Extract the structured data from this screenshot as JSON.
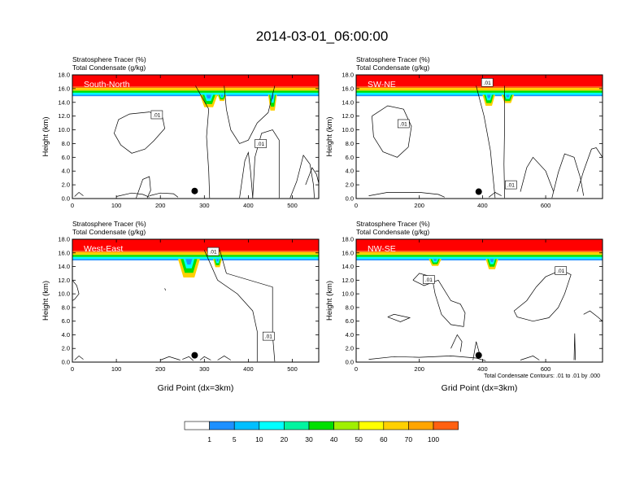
{
  "figure": {
    "title": "2014-03-01_06:00:00",
    "footnote": "Total Condensate Contours: .01 to .01 by .000"
  },
  "colors": {
    "levels": [
      "#ffffff",
      "#1e90ff",
      "#00bfff",
      "#00ffff",
      "#00f5a0",
      "#00e000",
      "#a0f000",
      "#ffff00",
      "#ffd000",
      "#ffa500",
      "#ff6010",
      "#ff0000"
    ],
    "contour": "#000000",
    "marker": "#000000"
  },
  "colorbar": {
    "labels": [
      "1",
      "5",
      "10",
      "20",
      "30",
      "40",
      "50",
      "60",
      "70",
      "100"
    ]
  },
  "chart_data": [
    {
      "type": "heatmap",
      "panel_label": "South-North",
      "title_lines": [
        "Stratosphere Tracer   (%)",
        "Total Condensate   (g/kg)"
      ],
      "xlabel": "",
      "ylabel": "Height (km)",
      "xlim": [
        0,
        560
      ],
      "ylim": [
        0,
        18
      ],
      "xticks": [
        0,
        100,
        200,
        300,
        400,
        500
      ],
      "yticks": [
        "0.0",
        "2.0",
        "4.0",
        "6.0",
        "8.0",
        "10.0",
        "12.0",
        "14.0",
        "16.0",
        "18.0"
      ],
      "layers": [
        {
          "class": 11,
          "x": 0,
          "x2": 560,
          "y0": 16.3,
          "y1": 18
        },
        {
          "class": 10,
          "x": 0,
          "x2": 560,
          "y0": 16.1,
          "y1": 16.3
        },
        {
          "class": 8,
          "x": 0,
          "x2": 560,
          "y0": 15.7,
          "y1": 16.1
        },
        {
          "class": 5,
          "x": 0,
          "x2": 560,
          "y0": 15.4,
          "y1": 15.7
        },
        {
          "class": 3,
          "x": 0,
          "x2": 560,
          "y0": 15.1,
          "y1": 15.4
        },
        {
          "class": 1,
          "x": 0,
          "x2": 560,
          "y0": 14.9,
          "y1": 15.1
        }
      ],
      "intrusions": [
        {
          "x": 290,
          "x2": 330,
          "depth": 1.8
        },
        {
          "x": 330,
          "x2": 350,
          "depth": 0.9
        },
        {
          "x": 445,
          "x2": 465,
          "depth": 2.3
        }
      ],
      "contours": [
        [
          [
            105,
            11.5
          ],
          [
            130,
            12.3
          ],
          [
            175,
            12.6
          ],
          [
            205,
            11.8
          ],
          [
            210,
            10.2
          ],
          [
            185,
            8.4
          ],
          [
            165,
            7.2
          ],
          [
            135,
            6.6
          ],
          [
            110,
            7.8
          ],
          [
            95,
            9.5
          ],
          [
            105,
            11.5
          ]
        ],
        [
          [
            280,
            16.4
          ],
          [
            310,
            13.0
          ],
          [
            305,
            9.0
          ],
          [
            310,
            4.0
          ],
          [
            312,
            0.1
          ]
        ],
        [
          [
            345,
            16.4
          ],
          [
            350,
            13.0
          ],
          [
            360,
            10.0
          ],
          [
            380,
            8.0
          ],
          [
            400,
            8.5
          ],
          [
            420,
            11.0
          ],
          [
            445,
            12.5
          ],
          [
            460,
            16.4
          ]
        ],
        [
          [
            380,
            0.1
          ],
          [
            392,
            5.5
          ],
          [
            400,
            6.7
          ],
          [
            405,
            4.0
          ],
          [
            410,
            0.1
          ]
        ],
        [
          [
            410,
            0.1
          ],
          [
            415,
            6.0
          ],
          [
            430,
            9.5
          ],
          [
            455,
            10.0
          ],
          [
            470,
            8.5
          ],
          [
            470,
            0.1
          ]
        ],
        [
          [
            495,
            0.1
          ],
          [
            510,
            2.5
          ],
          [
            525,
            6.3
          ],
          [
            540,
            5.0
          ],
          [
            548,
            2.0
          ],
          [
            550,
            0.1
          ]
        ],
        [
          [
            530,
            2.0
          ],
          [
            545,
            4.5
          ],
          [
            555,
            3.5
          ],
          [
            560,
            2.2
          ]
        ],
        [
          [
            145,
            0.1
          ],
          [
            160,
            2.8
          ],
          [
            175,
            3.2
          ],
          [
            178,
            1.2
          ],
          [
            170,
            0.1
          ]
        ],
        [
          [
            175,
            0.4
          ],
          [
            200,
            0.8
          ],
          [
            230,
            0.7
          ],
          [
            240,
            0.2
          ]
        ],
        [
          [
            5,
            0.3
          ],
          [
            15,
            0.9
          ],
          [
            25,
            0.4
          ]
        ],
        [
          [
            100,
            0.3
          ],
          [
            135,
            0.8
          ],
          [
            160,
            0.6
          ],
          [
            175,
            0.2
          ]
        ]
      ],
      "labels": [
        {
          "x": 192,
          "y": 12.2,
          "text": ".01"
        },
        {
          "x": 428,
          "y": 8.0,
          "text": ".01"
        }
      ],
      "marker": {
        "x": 278,
        "y": 1.1
      }
    },
    {
      "type": "heatmap",
      "panel_label": "SW-NE",
      "title_lines": [
        "Stratosphere Tracer   (%)",
        "Total Condensate   (g/kg)"
      ],
      "xlabel": "",
      "ylabel": "Height (km)",
      "xlim": [
        0,
        780
      ],
      "ylim": [
        0,
        18
      ],
      "xticks": [
        0,
        200,
        400,
        600
      ],
      "yticks": [
        "0.0",
        "2.0",
        "4.0",
        "6.0",
        "8.0",
        "10.0",
        "12.0",
        "14.0",
        "16.0",
        "18.0"
      ],
      "layers": [
        {
          "class": 11,
          "x": 0,
          "x2": 780,
          "y0": 16.3,
          "y1": 18
        },
        {
          "class": 10,
          "x": 0,
          "x2": 780,
          "y0": 16.1,
          "y1": 16.3
        },
        {
          "class": 8,
          "x": 0,
          "x2": 780,
          "y0": 15.7,
          "y1": 16.1
        },
        {
          "class": 5,
          "x": 0,
          "x2": 780,
          "y0": 15.4,
          "y1": 15.7
        },
        {
          "class": 3,
          "x": 0,
          "x2": 780,
          "y0": 15.1,
          "y1": 15.4
        },
        {
          "class": 1,
          "x": 0,
          "x2": 780,
          "y0": 14.9,
          "y1": 15.1
        }
      ],
      "intrusions": [
        {
          "x": 400,
          "x2": 440,
          "depth": 1.6
        },
        {
          "x": 460,
          "x2": 500,
          "depth": 1.2
        }
      ],
      "contours": [
        [
          [
            50,
            12.0
          ],
          [
            100,
            13.5
          ],
          [
            150,
            13.0
          ],
          [
            175,
            10.5
          ],
          [
            165,
            7.5
          ],
          [
            130,
            6.0
          ],
          [
            85,
            6.8
          ],
          [
            55,
            9.0
          ],
          [
            50,
            12.0
          ]
        ],
        [
          [
            380,
            16.4
          ],
          [
            405,
            12.0
          ],
          [
            425,
            7.0
          ],
          [
            440,
            0.1
          ]
        ],
        [
          [
            470,
            16.4
          ],
          [
            470,
            11.0
          ],
          [
            468,
            5.0
          ],
          [
            470,
            0.1
          ]
        ],
        [
          [
            520,
            1.0
          ],
          [
            540,
            4.5
          ],
          [
            560,
            6.0
          ],
          [
            600,
            4.0
          ],
          [
            625,
            1.0
          ]
        ],
        [
          [
            620,
            0.1
          ],
          [
            640,
            3.8
          ],
          [
            660,
            6.5
          ],
          [
            690,
            6.0
          ],
          [
            710,
            3.0
          ],
          [
            720,
            0.4
          ]
        ],
        [
          [
            700,
            1.0
          ],
          [
            720,
            4.0
          ],
          [
            745,
            7.2
          ],
          [
            760,
            7.4
          ],
          [
            780,
            6.0
          ]
        ],
        [
          [
            40,
            0.4
          ],
          [
            100,
            0.9
          ],
          [
            200,
            0.9
          ],
          [
            260,
            0.6
          ],
          [
            280,
            0.2
          ]
        ],
        [
          [
            420,
            0.2
          ],
          [
            440,
            0.9
          ],
          [
            460,
            0.4
          ]
        ]
      ],
      "labels": [
        {
          "x": 415,
          "y": 16.9,
          "text": ".01"
        },
        {
          "x": 150,
          "y": 10.9,
          "text": ".01"
        },
        {
          "x": 490,
          "y": 2.0,
          "text": ".01"
        }
      ],
      "marker": {
        "x": 388,
        "y": 1.0
      }
    },
    {
      "type": "heatmap",
      "panel_label": "West-East",
      "title_lines": [
        "Stratosphere Tracer   (%)",
        "Total Condensate   (g/kg)"
      ],
      "xlabel": "Grid Point (dx=3km)",
      "ylabel": "Height (km)",
      "xlim": [
        0,
        560
      ],
      "ylim": [
        0,
        18
      ],
      "xticks": [
        0,
        100,
        200,
        300,
        400,
        500
      ],
      "yticks": [
        "0.0",
        "2.0",
        "4.0",
        "6.0",
        "8.0",
        "10.0",
        "12.0",
        "14.0",
        "16.0",
        "18.0"
      ],
      "layers": [
        {
          "class": 11,
          "x": 0,
          "x2": 560,
          "y0": 16.3,
          "y1": 18
        },
        {
          "class": 10,
          "x": 0,
          "x2": 560,
          "y0": 16.1,
          "y1": 16.3
        },
        {
          "class": 8,
          "x": 0,
          "x2": 560,
          "y0": 15.7,
          "y1": 16.1
        },
        {
          "class": 5,
          "x": 0,
          "x2": 560,
          "y0": 15.4,
          "y1": 15.7
        },
        {
          "class": 3,
          "x": 0,
          "x2": 560,
          "y0": 15.1,
          "y1": 15.4
        },
        {
          "class": 1,
          "x": 0,
          "x2": 560,
          "y0": 14.9,
          "y1": 15.1
        }
      ],
      "intrusions": [
        {
          "x": 240,
          "x2": 290,
          "depth": 2.7
        },
        {
          "x": 320,
          "x2": 340,
          "depth": 1.2
        }
      ],
      "contours": [
        [
          [
            0,
            12.0
          ],
          [
            10,
            11.2
          ],
          [
            15,
            10.0
          ],
          [
            5,
            9.2
          ],
          [
            0,
            9.0
          ]
        ],
        [
          [
            300,
            16.4
          ],
          [
            330,
            12.0
          ],
          [
            375,
            10.0
          ],
          [
            410,
            7.5
          ],
          [
            420,
            4.5
          ],
          [
            420,
            0.1
          ]
        ],
        [
          [
            335,
            16.4
          ],
          [
            350,
            13.0
          ],
          [
            455,
            11.0
          ],
          [
            455,
            4.0
          ],
          [
            460,
            0.1
          ]
        ],
        [
          [
            210,
            10.8
          ],
          [
            212,
            10.5
          ]
        ],
        [
          [
            5,
            0.3
          ],
          [
            15,
            0.9
          ],
          [
            25,
            0.4
          ]
        ],
        [
          [
            200,
            0.3
          ],
          [
            220,
            0.8
          ],
          [
            245,
            0.3
          ]
        ],
        [
          [
            250,
            0.4
          ],
          [
            265,
            0.8
          ],
          [
            275,
            0.2
          ]
        ],
        [
          [
            290,
            0.3
          ],
          [
            300,
            0.8
          ],
          [
            315,
            0.3
          ]
        ],
        [
          [
            330,
            0.3
          ],
          [
            345,
            0.9
          ],
          [
            360,
            0.3
          ]
        ]
      ],
      "labels": [
        {
          "x": 320,
          "y": 16.2,
          "text": ".01"
        },
        {
          "x": 446,
          "y": 3.8,
          "text": ".01"
        }
      ],
      "marker": {
        "x": 278,
        "y": 1.0
      }
    },
    {
      "type": "heatmap",
      "panel_label": "NW-SE",
      "title_lines": [
        "Stratosphere Tracer   (%)",
        "Total Condensate   (g/kg)"
      ],
      "xlabel": "Grid Point (dx=3km)",
      "ylabel": "Height (km)",
      "xlim": [
        0,
        780
      ],
      "ylim": [
        0,
        18
      ],
      "xticks": [
        0,
        200,
        400,
        600
      ],
      "yticks": [
        "0.0",
        "2.0",
        "4.0",
        "6.0",
        "8.0",
        "10.0",
        "12.0",
        "14.0",
        "16.0",
        "18.0"
      ],
      "layers": [
        {
          "class": 11,
          "x": 0,
          "x2": 780,
          "y0": 16.3,
          "y1": 18
        },
        {
          "class": 10,
          "x": 0,
          "x2": 780,
          "y0": 16.1,
          "y1": 16.3
        },
        {
          "class": 8,
          "x": 0,
          "x2": 780,
          "y0": 15.7,
          "y1": 16.1
        },
        {
          "class": 5,
          "x": 0,
          "x2": 780,
          "y0": 15.4,
          "y1": 15.7
        },
        {
          "class": 3,
          "x": 0,
          "x2": 780,
          "y0": 15.1,
          "y1": 15.4
        },
        {
          "class": 1,
          "x": 0,
          "x2": 780,
          "y0": 14.9,
          "y1": 15.1
        }
      ],
      "intrusions": [
        {
          "x": 230,
          "x2": 270,
          "depth": 1.0
        },
        {
          "x": 410,
          "x2": 450,
          "depth": 1.5
        }
      ],
      "contours": [
        [
          [
            180,
            12.0
          ],
          [
            200,
            13.0
          ],
          [
            240,
            12.5
          ],
          [
            250,
            10.0
          ],
          [
            270,
            7.0
          ],
          [
            300,
            5.5
          ],
          [
            340,
            5.2
          ],
          [
            345,
            7.2
          ],
          [
            330,
            8.5
          ],
          [
            300,
            9.0
          ],
          [
            260,
            12.0
          ],
          [
            215,
            11.2
          ],
          [
            180,
            12.0
          ]
        ],
        [
          [
            100,
            6.6
          ],
          [
            120,
            7.0
          ],
          [
            170,
            6.5
          ],
          [
            140,
            5.9
          ],
          [
            100,
            6.6
          ]
        ],
        [
          [
            500,
            7.5
          ],
          [
            540,
            9.0
          ],
          [
            570,
            11.0
          ],
          [
            600,
            12.5
          ],
          [
            650,
            13.5
          ],
          [
            680,
            12.8
          ],
          [
            660,
            10.0
          ],
          [
            640,
            8.0
          ],
          [
            610,
            6.5
          ],
          [
            560,
            6.0
          ],
          [
            510,
            6.6
          ],
          [
            500,
            7.5
          ]
        ],
        [
          [
            720,
            7.0
          ],
          [
            740,
            7.5
          ],
          [
            765,
            6.6
          ],
          [
            780,
            6.0
          ]
        ],
        [
          [
            690,
            0.3
          ],
          [
            692,
            4.2
          ],
          [
            694,
            0.3
          ]
        ],
        [
          [
            40,
            0.4
          ],
          [
            120,
            0.8
          ],
          [
            200,
            0.7
          ],
          [
            300,
            0.9
          ],
          [
            380,
            0.6
          ],
          [
            410,
            0.2
          ]
        ],
        [
          [
            520,
            0.3
          ],
          [
            560,
            0.9
          ],
          [
            580,
            0.3
          ]
        ],
        [
          [
            300,
            2.0
          ],
          [
            320,
            4.0
          ],
          [
            335,
            3.0
          ],
          [
            330,
            1.5
          ]
        ],
        [
          [
            370,
            0.3
          ],
          [
            380,
            3.0
          ],
          [
            392,
            1.0
          ]
        ]
      ],
      "labels": [
        {
          "x": 230,
          "y": 12.1,
          "text": ".01"
        },
        {
          "x": 648,
          "y": 13.4,
          "text": ".01"
        }
      ],
      "marker": {
        "x": 388,
        "y": 1.0
      }
    }
  ]
}
